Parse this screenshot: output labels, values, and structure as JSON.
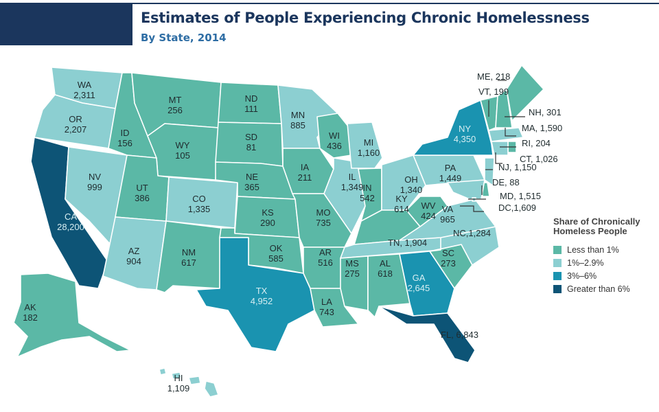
{
  "title": "Estimates of People Experiencing Chronic Homelessness",
  "subtitle": "By State, 2014",
  "legend": {
    "title": "Share of Chronically Homeless People",
    "items": [
      {
        "label": "Less than 1%",
        "color": "#5bb8a6"
      },
      {
        "label": "1%–2.9%",
        "color": "#8ccfd1"
      },
      {
        "label": "3%–6%",
        "color": "#1a93b0"
      },
      {
        "label": "Greater than 6%",
        "color": "#0d5476"
      }
    ]
  },
  "states": [
    {
      "abbr": "WA",
      "value": "2,311",
      "cat": 1
    },
    {
      "abbr": "OR",
      "value": "2,207",
      "cat": 1
    },
    {
      "abbr": "CA",
      "value": "28,200",
      "cat": 3
    },
    {
      "abbr": "NV",
      "value": "999",
      "cat": 1
    },
    {
      "abbr": "ID",
      "value": "156",
      "cat": 0
    },
    {
      "abbr": "MT",
      "value": "256",
      "cat": 0
    },
    {
      "abbr": "WY",
      "value": "105",
      "cat": 0
    },
    {
      "abbr": "UT",
      "value": "386",
      "cat": 0
    },
    {
      "abbr": "CO",
      "value": "1,335",
      "cat": 1
    },
    {
      "abbr": "AZ",
      "value": "904",
      "cat": 1
    },
    {
      "abbr": "NM",
      "value": "617",
      "cat": 0
    },
    {
      "abbr": "ND",
      "value": "111",
      "cat": 0
    },
    {
      "abbr": "SD",
      "value": "81",
      "cat": 0
    },
    {
      "abbr": "NE",
      "value": "365",
      "cat": 0
    },
    {
      "abbr": "KS",
      "value": "290",
      "cat": 0
    },
    {
      "abbr": "OK",
      "value": "585",
      "cat": 0
    },
    {
      "abbr": "TX",
      "value": "4,952",
      "cat": 2
    },
    {
      "abbr": "MN",
      "value": "885",
      "cat": 1
    },
    {
      "abbr": "IA",
      "value": "211",
      "cat": 0
    },
    {
      "abbr": "MO",
      "value": "735",
      "cat": 0
    },
    {
      "abbr": "AR",
      "value": "516",
      "cat": 0
    },
    {
      "abbr": "LA",
      "value": "743",
      "cat": 0
    },
    {
      "abbr": "WI",
      "value": "436",
      "cat": 0
    },
    {
      "abbr": "IL",
      "value": "1,349",
      "cat": 1
    },
    {
      "abbr": "MI",
      "value": "1,160",
      "cat": 1
    },
    {
      "abbr": "IN",
      "value": "542",
      "cat": 0
    },
    {
      "abbr": "OH",
      "value": "1,340",
      "cat": 1
    },
    {
      "abbr": "KY",
      "value": "614",
      "cat": 0
    },
    {
      "abbr": "TN",
      "value": "1,904",
      "cat": 1
    },
    {
      "abbr": "MS",
      "value": "275",
      "cat": 0
    },
    {
      "abbr": "AL",
      "value": "618",
      "cat": 0
    },
    {
      "abbr": "GA",
      "value": "2,645",
      "cat": 2
    },
    {
      "abbr": "FL",
      "value": "6,843",
      "cat": 3
    },
    {
      "abbr": "SC",
      "value": "273",
      "cat": 0
    },
    {
      "abbr": "NC",
      "value": "1,284",
      "cat": 1
    },
    {
      "abbr": "VA",
      "value": "965",
      "cat": 1
    },
    {
      "abbr": "WV",
      "value": "424",
      "cat": 0
    },
    {
      "abbr": "PA",
      "value": "1,449",
      "cat": 1
    },
    {
      "abbr": "NY",
      "value": "4,350",
      "cat": 2
    },
    {
      "abbr": "VT",
      "value": "199",
      "cat": 0
    },
    {
      "abbr": "NH",
      "value": "301",
      "cat": 0
    },
    {
      "abbr": "ME",
      "value": "218",
      "cat": 0
    },
    {
      "abbr": "MA",
      "value": "1,590",
      "cat": 1
    },
    {
      "abbr": "RI",
      "value": "204",
      "cat": 0
    },
    {
      "abbr": "CT",
      "value": "1,026",
      "cat": 1
    },
    {
      "abbr": "NJ",
      "value": "1,150",
      "cat": 1
    },
    {
      "abbr": "DE",
      "value": "88",
      "cat": 0
    },
    {
      "abbr": "MD",
      "value": "1,515",
      "cat": 1
    },
    {
      "abbr": "DC",
      "value": "1,609",
      "cat": 1
    },
    {
      "abbr": "AK",
      "value": "182",
      "cat": 0
    },
    {
      "abbr": "HI",
      "value": "1,109",
      "cat": 1
    }
  ]
}
